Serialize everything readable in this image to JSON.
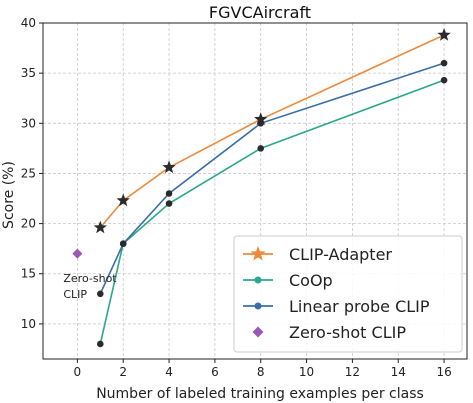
{
  "chart_data": {
    "type": "line",
    "title": "FGVCAircraft",
    "xlabel": "Number of labeled training examples per class",
    "ylabel": "Score (%)",
    "xlim": [
      -1.5,
      17.0
    ],
    "ylim": [
      6.5,
      40.0
    ],
    "xticks": [
      0,
      2,
      4,
      6,
      8,
      10,
      12,
      14,
      16
    ],
    "yticks": [
      10,
      15,
      20,
      25,
      30,
      35,
      40
    ],
    "grid": true,
    "legend_position": "lower-right",
    "series": [
      {
        "name": "CLIP-Adapter",
        "color": "#ee8a3c",
        "marker": "star",
        "x": [
          1,
          2,
          4,
          8,
          16
        ],
        "y": [
          19.6,
          22.3,
          25.6,
          30.4,
          38.8
        ]
      },
      {
        "name": "CoOp",
        "color": "#2aa88a",
        "marker": "dot",
        "x": [
          1,
          2,
          4,
          8,
          16
        ],
        "y": [
          8.0,
          18.0,
          22.0,
          27.5,
          34.3
        ]
      },
      {
        "name": "Linear probe CLIP",
        "color": "#3a6ea5",
        "marker": "dot",
        "x": [
          1,
          2,
          4,
          8,
          16
        ],
        "y": [
          13.0,
          18.0,
          23.0,
          30.0,
          36.0
        ]
      },
      {
        "name": "Zero-shot CLIP",
        "color": "#9b59b6",
        "marker": "diamond",
        "x": [
          0
        ],
        "y": [
          17.0
        ]
      }
    ],
    "annotations": [
      {
        "text_lines": [
          "Zero-shot",
          "CLIP"
        ],
        "x": 0,
        "y": 13.0
      }
    ]
  }
}
